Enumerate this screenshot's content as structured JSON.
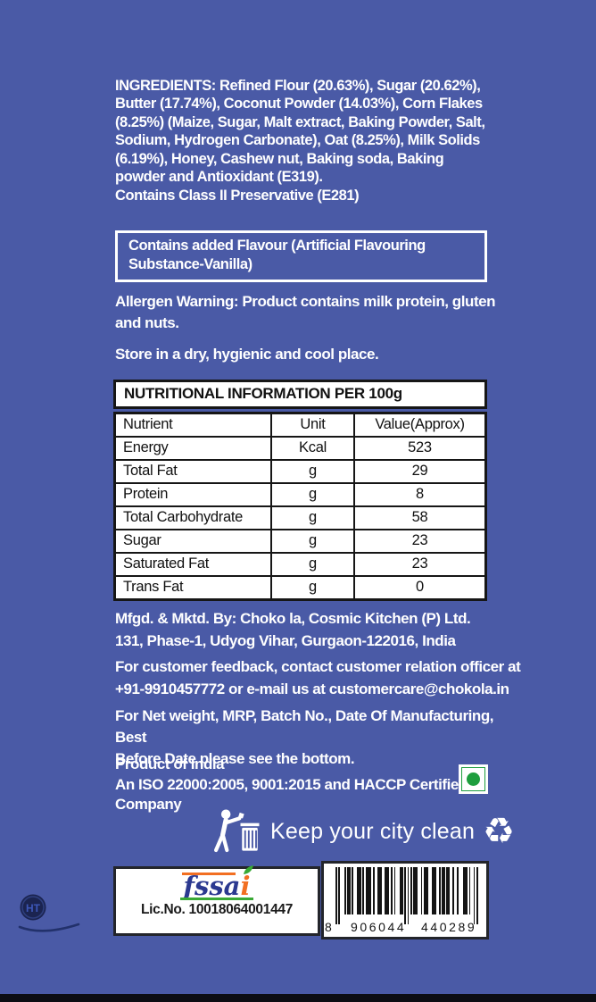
{
  "colors": {
    "background": "#4a5aa6",
    "text": "#ffffff",
    "table_ink": "#161616",
    "veg_mark_green": "#1e9e3e",
    "fssai_navy": "#2b3990",
    "fssai_orange": "#f26f21",
    "fssai_green": "#39a935"
  },
  "label": {
    "ingredients": {
      "heading": "INGREDIENTS:",
      "text": "Refined Flour (20.63%), Sugar (20.62%), Butter (17.74%), Coconut Powder (14.03%), Corn Flakes (8.25%) (Maize, Sugar, Malt extract, Baking Powder, Salt, Sodium, Hydrogen Carbonate), Oat (8.25%), Milk Solids (6.19%), Honey, Cashew nut, Baking soda, Baking powder and Antioxidant (E319).",
      "preservative_line": "Contains Class II Preservative (E281)"
    },
    "flavour_box": "Contains added Flavour (Artificial Flavouring Substance-Vanilla)",
    "allergen_warning": "Allergen Warning: Product contains milk protein, gluten and nuts.",
    "storage": "Store in a dry, hygienic and cool place.",
    "nutrition_table": {
      "title": "NUTRITIONAL INFORMATION PER 100g",
      "columns": [
        "Nutrient",
        "Unit",
        "Value(Approx)"
      ],
      "rows": [
        [
          "Energy",
          "Kcal",
          "523"
        ],
        [
          "Total Fat",
          "g",
          "29"
        ],
        [
          "Protein",
          "g",
          "8"
        ],
        [
          "Total Carbohydrate",
          "g",
          "58"
        ],
        [
          "Sugar",
          "g",
          "23"
        ],
        [
          "Saturated Fat",
          "g",
          "23"
        ],
        [
          "Trans Fat",
          "g",
          "0"
        ]
      ]
    },
    "manufacturer": "Mfgd. & Mktd. By: Choko la, Cosmic Kitchen (P) Ltd.\n131, Phase-1, Udyog Vihar, Gurgaon-122016, India",
    "customer_feedback": "For customer feedback, contact customer relation officer at\n+91-9910457772 or e-mail us at customercare@chokola.in",
    "net_weight_note": "For Net weight, MRP, Batch No., Date Of Manufacturing, Best\nBefore Date please see the bottom.",
    "origin_block": "Product of India\nAn ISO 22000:2005, 9001:2015 and HACCP Certified\nCompany",
    "city_clean": "Keep your city clean"
  },
  "icons": {
    "tidy_man_icon": "person-using-litter-bin",
    "recycle_glyph": "♻",
    "veg_mark": "green-dot-vegetarian-symbol",
    "ht_monogram": "circular-logo-watermark"
  },
  "footer": {
    "fssai": {
      "word_main": "fssa",
      "word_i": "i",
      "license": "Lic.No. 10018064001447"
    },
    "barcode": {
      "digits": "8906044440289"
    }
  }
}
